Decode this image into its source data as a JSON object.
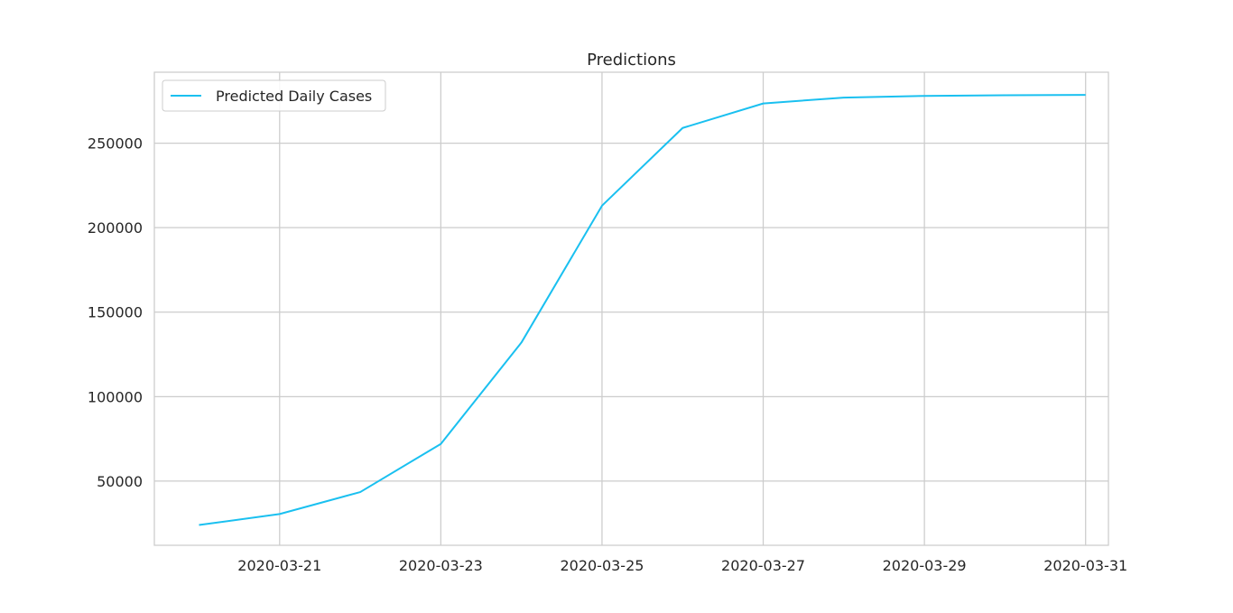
{
  "chart_data": {
    "type": "line",
    "title": "Predictions",
    "xlabel": "",
    "ylabel": "",
    "x": [
      "2020-03-20",
      "2020-03-21",
      "2020-03-22",
      "2020-03-23",
      "2020-03-24",
      "2020-03-25",
      "2020-03-26",
      "2020-03-27",
      "2020-03-28",
      "2020-03-29",
      "2020-03-30",
      "2020-03-31"
    ],
    "series": [
      {
        "name": "Predicted Daily Cases",
        "color": "#1ac0f0",
        "values": [
          24000,
          30500,
          43500,
          72000,
          132000,
          213000,
          259000,
          273500,
          277000,
          278000,
          278400,
          278600
        ]
      }
    ],
    "xlim": [
      "2020-03-19 10:42",
      "2020-03-31 06:48"
    ],
    "ylim": [
      12000,
      292000
    ],
    "xticks": [
      "2020-03-21",
      "2020-03-23",
      "2020-03-25",
      "2020-03-27",
      "2020-03-29",
      "2020-03-31"
    ],
    "yticks": [
      50000,
      100000,
      150000,
      200000,
      250000
    ],
    "grid": true,
    "legend_position": "upper left",
    "colors": {
      "grid": "#cccccc",
      "spine": "#cccccc",
      "text": "#262626"
    }
  }
}
